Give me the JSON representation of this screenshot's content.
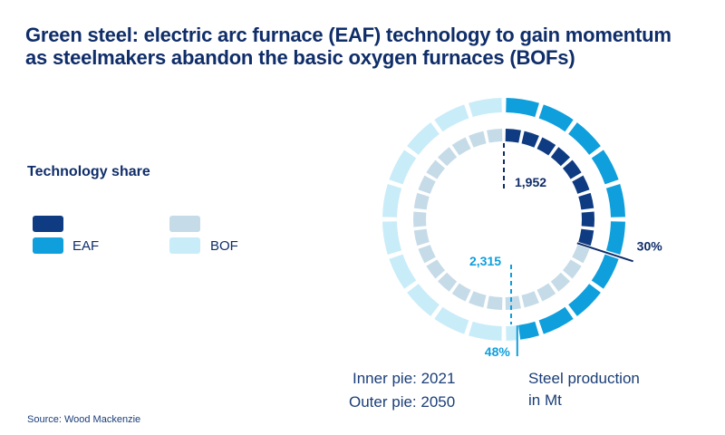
{
  "title_lines": [
    "Green steel: electric arc furnace (EAF) technology to gain momentum",
    "as steelmakers abandon the basic oxygen furnaces (BOFs)"
  ],
  "legend": {
    "title": "Technology share",
    "eaf_label": "EAF",
    "bof_label": "BOF"
  },
  "colors": {
    "eaf_2021": "#0f3b82",
    "eaf_2050": "#0e9fdc",
    "bof_2021": "#c6dbe8",
    "bof_2050": "#c9ecf9",
    "inner_pointer": "#0f2d69",
    "outer_pointer": "#0e9fdc"
  },
  "notes": {
    "inner": "Inner pie: 2021",
    "outer": "Outer pie: 2050",
    "unit_line1": "Steel production",
    "unit_line2": "in Mt"
  },
  "source": "Source: Wood Mackenzie",
  "chart_data": {
    "type": "pie",
    "rings": [
      {
        "ring": "inner",
        "year": "2021",
        "total": 1952,
        "total_label": "1,952",
        "segments": [
          {
            "technology": "EAF",
            "share": 30,
            "share_label": "30%"
          },
          {
            "technology": "BOF",
            "share": 70
          }
        ]
      },
      {
        "ring": "outer",
        "year": "2050",
        "total": 2315,
        "total_label": "2,315",
        "segments": [
          {
            "technology": "EAF",
            "share": 48,
            "share_label": "48%"
          },
          {
            "technology": "BOF",
            "share": 52
          }
        ]
      }
    ]
  }
}
